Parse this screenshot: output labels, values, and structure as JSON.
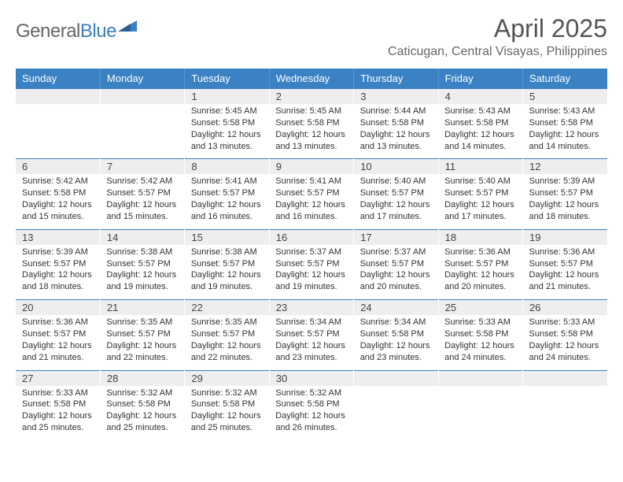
{
  "logo": {
    "general": "General",
    "blue": "Blue"
  },
  "title": "April 2025",
  "subtitle": "Caticugan, Central Visayas, Philippines",
  "colors": {
    "header_bg": "#3b82c4",
    "header_text": "#ffffff",
    "row_border": "#3b7fc4",
    "daynum_bg": "#eeeeee",
    "text": "#333333",
    "subtext": "#666666"
  },
  "day_names": [
    "Sunday",
    "Monday",
    "Tuesday",
    "Wednesday",
    "Thursday",
    "Friday",
    "Saturday"
  ],
  "weeks": [
    [
      null,
      null,
      {
        "n": "1",
        "sr": "5:45 AM",
        "ss": "5:58 PM",
        "dl": "12 hours and 13 minutes."
      },
      {
        "n": "2",
        "sr": "5:45 AM",
        "ss": "5:58 PM",
        "dl": "12 hours and 13 minutes."
      },
      {
        "n": "3",
        "sr": "5:44 AM",
        "ss": "5:58 PM",
        "dl": "12 hours and 13 minutes."
      },
      {
        "n": "4",
        "sr": "5:43 AM",
        "ss": "5:58 PM",
        "dl": "12 hours and 14 minutes."
      },
      {
        "n": "5",
        "sr": "5:43 AM",
        "ss": "5:58 PM",
        "dl": "12 hours and 14 minutes."
      }
    ],
    [
      {
        "n": "6",
        "sr": "5:42 AM",
        "ss": "5:58 PM",
        "dl": "12 hours and 15 minutes."
      },
      {
        "n": "7",
        "sr": "5:42 AM",
        "ss": "5:57 PM",
        "dl": "12 hours and 15 minutes."
      },
      {
        "n": "8",
        "sr": "5:41 AM",
        "ss": "5:57 PM",
        "dl": "12 hours and 16 minutes."
      },
      {
        "n": "9",
        "sr": "5:41 AM",
        "ss": "5:57 PM",
        "dl": "12 hours and 16 minutes."
      },
      {
        "n": "10",
        "sr": "5:40 AM",
        "ss": "5:57 PM",
        "dl": "12 hours and 17 minutes."
      },
      {
        "n": "11",
        "sr": "5:40 AM",
        "ss": "5:57 PM",
        "dl": "12 hours and 17 minutes."
      },
      {
        "n": "12",
        "sr": "5:39 AM",
        "ss": "5:57 PM",
        "dl": "12 hours and 18 minutes."
      }
    ],
    [
      {
        "n": "13",
        "sr": "5:39 AM",
        "ss": "5:57 PM",
        "dl": "12 hours and 18 minutes."
      },
      {
        "n": "14",
        "sr": "5:38 AM",
        "ss": "5:57 PM",
        "dl": "12 hours and 19 minutes."
      },
      {
        "n": "15",
        "sr": "5:38 AM",
        "ss": "5:57 PM",
        "dl": "12 hours and 19 minutes."
      },
      {
        "n": "16",
        "sr": "5:37 AM",
        "ss": "5:57 PM",
        "dl": "12 hours and 19 minutes."
      },
      {
        "n": "17",
        "sr": "5:37 AM",
        "ss": "5:57 PM",
        "dl": "12 hours and 20 minutes."
      },
      {
        "n": "18",
        "sr": "5:36 AM",
        "ss": "5:57 PM",
        "dl": "12 hours and 20 minutes."
      },
      {
        "n": "19",
        "sr": "5:36 AM",
        "ss": "5:57 PM",
        "dl": "12 hours and 21 minutes."
      }
    ],
    [
      {
        "n": "20",
        "sr": "5:36 AM",
        "ss": "5:57 PM",
        "dl": "12 hours and 21 minutes."
      },
      {
        "n": "21",
        "sr": "5:35 AM",
        "ss": "5:57 PM",
        "dl": "12 hours and 22 minutes."
      },
      {
        "n": "22",
        "sr": "5:35 AM",
        "ss": "5:57 PM",
        "dl": "12 hours and 22 minutes."
      },
      {
        "n": "23",
        "sr": "5:34 AM",
        "ss": "5:57 PM",
        "dl": "12 hours and 23 minutes."
      },
      {
        "n": "24",
        "sr": "5:34 AM",
        "ss": "5:58 PM",
        "dl": "12 hours and 23 minutes."
      },
      {
        "n": "25",
        "sr": "5:33 AM",
        "ss": "5:58 PM",
        "dl": "12 hours and 24 minutes."
      },
      {
        "n": "26",
        "sr": "5:33 AM",
        "ss": "5:58 PM",
        "dl": "12 hours and 24 minutes."
      }
    ],
    [
      {
        "n": "27",
        "sr": "5:33 AM",
        "ss": "5:58 PM",
        "dl": "12 hours and 25 minutes."
      },
      {
        "n": "28",
        "sr": "5:32 AM",
        "ss": "5:58 PM",
        "dl": "12 hours and 25 minutes."
      },
      {
        "n": "29",
        "sr": "5:32 AM",
        "ss": "5:58 PM",
        "dl": "12 hours and 25 minutes."
      },
      {
        "n": "30",
        "sr": "5:32 AM",
        "ss": "5:58 PM",
        "dl": "12 hours and 26 minutes."
      },
      null,
      null,
      null
    ]
  ],
  "labels": {
    "sunrise": "Sunrise:",
    "sunset": "Sunset:",
    "daylight": "Daylight:"
  }
}
